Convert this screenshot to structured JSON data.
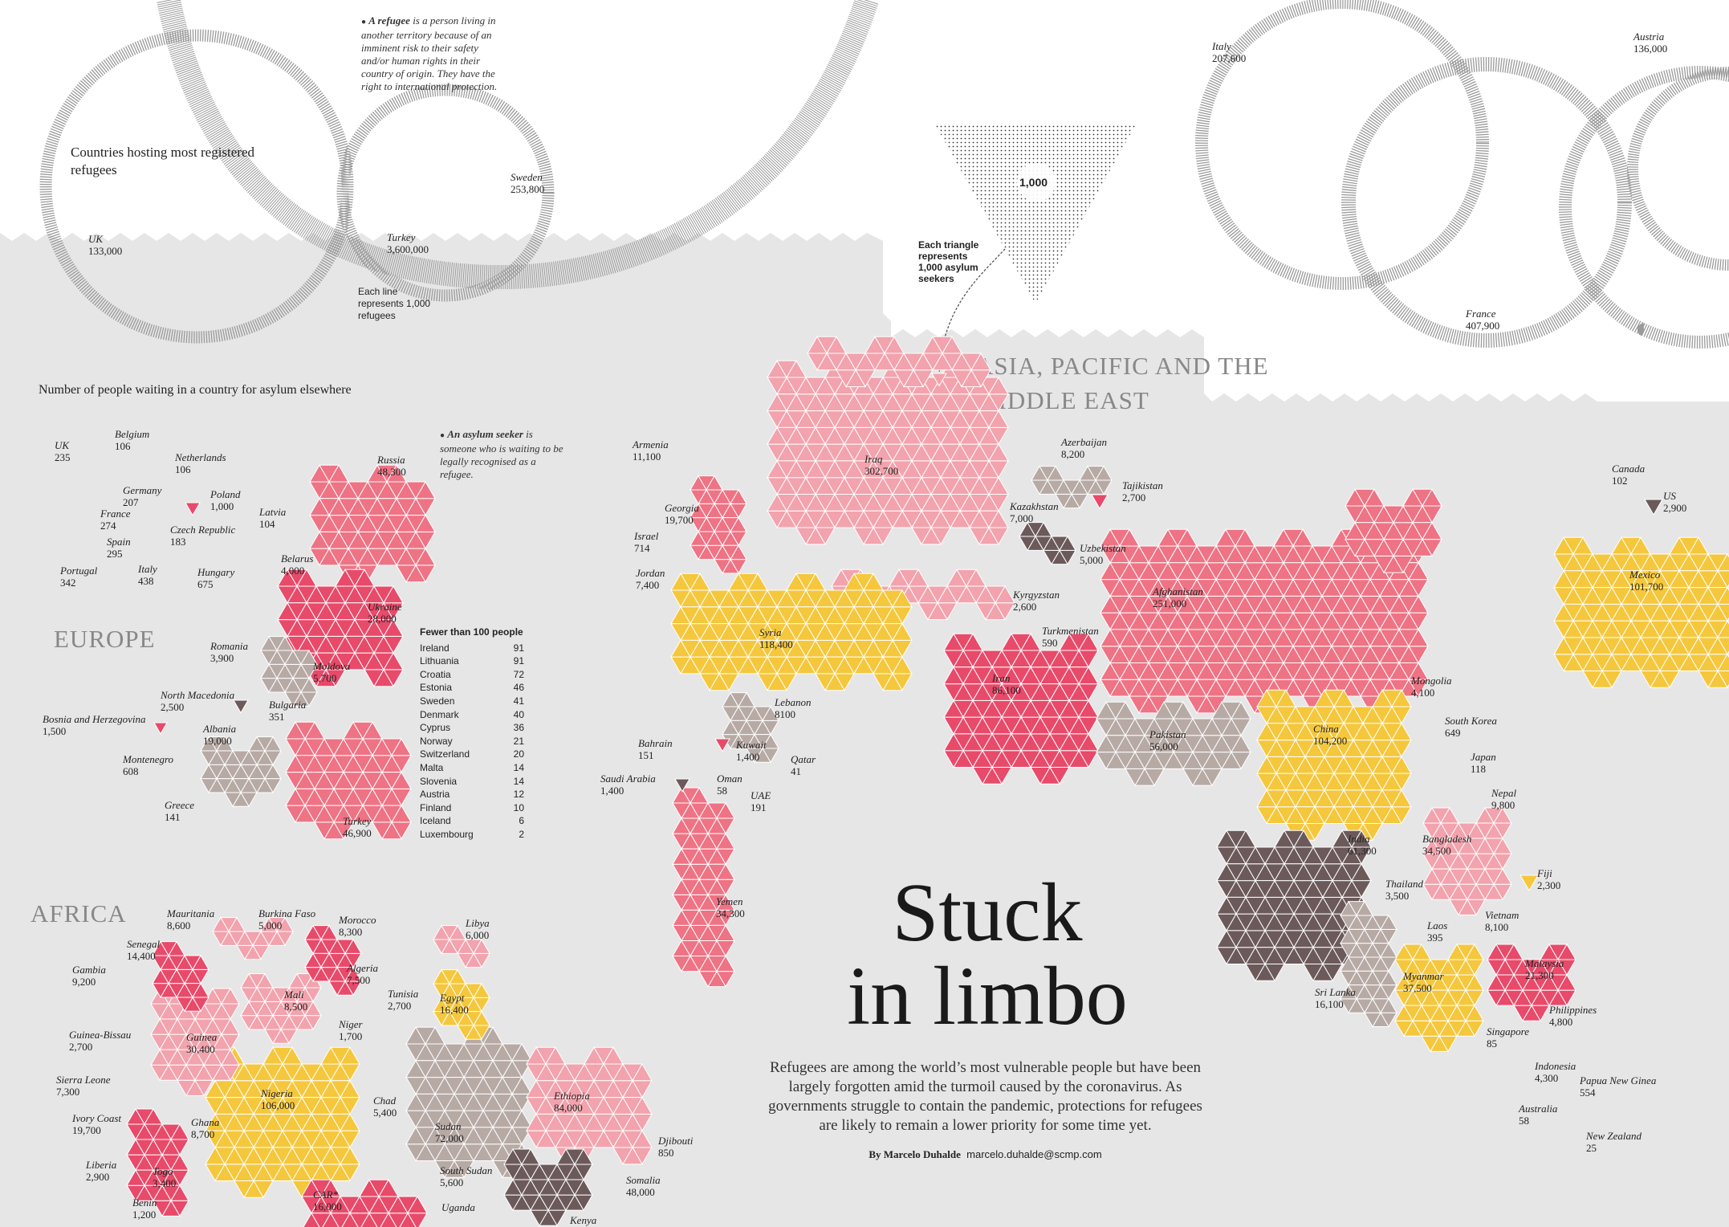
{
  "colors": {
    "background": "#e6e6e6",
    "white": "#ffffff",
    "pink_light": "#f2a3ad",
    "pink": "#ee7384",
    "red": "#e84a6a",
    "yellow": "#f5c73c",
    "taupe": "#b7aaa5",
    "dark": "#6c5a5b",
    "ring": "#9a9a9a"
  },
  "top": {
    "title": "Countries hosting most registered refugees",
    "refugee_note_term": "A refugee",
    "refugee_note_text": "is a person living in another territory because of an imminent risk to their safety and/or human rights in their country of origin. They have the right to international protection.",
    "line_caption": "Each line represents 1,000 refugees",
    "triangle_value": "1,000",
    "triangle_caption": "Each triangle represents 1,000 asylum seekers",
    "hosts": [
      {
        "name": "UK",
        "value": "133,000"
      },
      {
        "name": "Turkey",
        "value": "3,600,000"
      },
      {
        "name": "Sweden",
        "value": "253,800"
      },
      {
        "name": "Italy",
        "value": "207,600"
      },
      {
        "name": "Austria",
        "value": "136,000"
      },
      {
        "name": "France",
        "value": "407,900"
      }
    ]
  },
  "asylum": {
    "title": "Number of people waiting in a country for asylum elsewhere",
    "asylum_note_term": "An asylum seeker",
    "asylum_note_text": "is someone who is waiting to be legally recognised as a refugee.",
    "regions": {
      "europe": "EUROPE",
      "africa": "AFRICA",
      "asia": "ASIA, PACIFIC AND THE MIDDLE EAST"
    }
  },
  "fewer": {
    "title": "Fewer than 100 people",
    "rows": [
      {
        "c": "Ireland",
        "v": "91"
      },
      {
        "c": "Lithuania",
        "v": "91"
      },
      {
        "c": "Croatia",
        "v": "72"
      },
      {
        "c": "Estonia",
        "v": "46"
      },
      {
        "c": "Sweden",
        "v": "41"
      },
      {
        "c": "Denmark",
        "v": "40"
      },
      {
        "c": "Cyprus",
        "v": "36"
      },
      {
        "c": "Norway",
        "v": "21"
      },
      {
        "c": "Switzerland",
        "v": "20"
      },
      {
        "c": "Malta",
        "v": "14"
      },
      {
        "c": "Slovenia",
        "v": "14"
      },
      {
        "c": "Austria",
        "v": "12"
      },
      {
        "c": "Finland",
        "v": "10"
      },
      {
        "c": "Iceland",
        "v": "6"
      },
      {
        "c": "Luxembourg",
        "v": "2"
      }
    ]
  },
  "labels": [
    {
      "n": "UK",
      "v": "235"
    },
    {
      "n": "Belgium",
      "v": "106"
    },
    {
      "n": "Netherlands",
      "v": "106"
    },
    {
      "n": "Germany",
      "v": "207"
    },
    {
      "n": "Poland",
      "v": "1,000"
    },
    {
      "n": "France",
      "v": "274"
    },
    {
      "n": "Czech Republic",
      "v": "183"
    },
    {
      "n": "Spain",
      "v": "295"
    },
    {
      "n": "Portugal",
      "v": "342"
    },
    {
      "n": "Italy",
      "v": "438"
    },
    {
      "n": "Hungary",
      "v": "675"
    },
    {
      "n": "Latvia",
      "v": "104"
    },
    {
      "n": "Russia",
      "v": "48,300"
    },
    {
      "n": "Belarus",
      "v": "4,000"
    },
    {
      "n": "Ukraine",
      "v": "28,000"
    },
    {
      "n": "Romania",
      "v": "3,900"
    },
    {
      "n": "Moldova",
      "v": "5,700"
    },
    {
      "n": "North Macedonia",
      "v": "2,500"
    },
    {
      "n": "Bulgaria",
      "v": "351"
    },
    {
      "n": "Bosnia and Herzegovina",
      "v": "1,500"
    },
    {
      "n": "Albania",
      "v": "19,000"
    },
    {
      "n": "Montenegro",
      "v": "608"
    },
    {
      "n": "Greece",
      "v": "141"
    },
    {
      "n": "Turkey",
      "v": "46,900"
    },
    {
      "n": "Mauritania",
      "v": "8,600"
    },
    {
      "n": "Burkina Faso",
      "v": "5,000"
    },
    {
      "n": "Morocco",
      "v": "8,300"
    },
    {
      "n": "Libya",
      "v": "6,000"
    },
    {
      "n": "Senegal",
      "v": "14,400"
    },
    {
      "n": "Gambia",
      "v": "9,200"
    },
    {
      "n": "Algeria",
      "v": "7,500"
    },
    {
      "n": "Mali",
      "v": "8,500"
    },
    {
      "n": "Tunisia",
      "v": "2,700"
    },
    {
      "n": "Egypt",
      "v": "16,400"
    },
    {
      "n": "Guinea-Bissau",
      "v": "2,700"
    },
    {
      "n": "Guinea",
      "v": "30,400"
    },
    {
      "n": "Niger",
      "v": "1,700"
    },
    {
      "n": "Sierra Leone",
      "v": "7,300"
    },
    {
      "n": "Nigeria",
      "v": "106,000"
    },
    {
      "n": "Chad",
      "v": "5,400"
    },
    {
      "n": "Sudan",
      "v": "72,000"
    },
    {
      "n": "Ethiopia",
      "v": "84,000"
    },
    {
      "n": "Ivory Coast",
      "v": "19,700"
    },
    {
      "n": "Ghana",
      "v": "8,700"
    },
    {
      "n": "Djibouti",
      "v": "850"
    },
    {
      "n": "Liberia",
      "v": "2,900"
    },
    {
      "n": "Togo",
      "v": "3,400"
    },
    {
      "n": "South Sudan",
      "v": "5,600"
    },
    {
      "n": "Somalia",
      "v": "48,000"
    },
    {
      "n": "Benin",
      "v": "1,200"
    },
    {
      "n": "CAR*",
      "v": "16,000"
    },
    {
      "n": "Uganda",
      "v": ""
    },
    {
      "n": "Kenya",
      "v": ""
    },
    {
      "n": "Armenia",
      "v": "11,100"
    },
    {
      "n": "Iraq",
      "v": "302,700"
    },
    {
      "n": "Georgia",
      "v": "19,700"
    },
    {
      "n": "Israel",
      "v": "714"
    },
    {
      "n": "Jordan",
      "v": "7,400"
    },
    {
      "n": "Syria",
      "v": "118,400"
    },
    {
      "n": "Lebanon",
      "v": "8100"
    },
    {
      "n": "Bahrain",
      "v": "151"
    },
    {
      "n": "Kuwait",
      "v": "1,400"
    },
    {
      "n": "Qatar",
      "v": "41"
    },
    {
      "n": "Saudi Arabia",
      "v": "1,400"
    },
    {
      "n": "Oman",
      "v": "58"
    },
    {
      "n": "UAE",
      "v": "191"
    },
    {
      "n": "Yemen",
      "v": "34,300"
    },
    {
      "n": "Azerbaijan",
      "v": "8,200"
    },
    {
      "n": "Tajikistan",
      "v": "2,700"
    },
    {
      "n": "Kazakhstan",
      "v": "7,000"
    },
    {
      "n": "Uzbekistan",
      "v": "5,000"
    },
    {
      "n": "Kyrgyzstan",
      "v": "2,600"
    },
    {
      "n": "Afghanistan",
      "v": "251,000"
    },
    {
      "n": "Turkmenistan",
      "v": "590"
    },
    {
      "n": "Iran",
      "v": "86,100"
    },
    {
      "n": "Mongolia",
      "v": "4,100"
    },
    {
      "n": "South Korea",
      "v": "649"
    },
    {
      "n": "China",
      "v": "104,200"
    },
    {
      "n": "Pakistan",
      "v": "56,000"
    },
    {
      "n": "Japan",
      "v": "118"
    },
    {
      "n": "Nepal",
      "v": "9,800"
    },
    {
      "n": "India",
      "v": "61,300"
    },
    {
      "n": "Bangladesh",
      "v": "34,500"
    },
    {
      "n": "Thailand",
      "v": "3,500"
    },
    {
      "n": "Fiji",
      "v": "2,300"
    },
    {
      "n": "Vietnam",
      "v": "8,100"
    },
    {
      "n": "Laos",
      "v": "395"
    },
    {
      "n": "Myanmar",
      "v": "37,500"
    },
    {
      "n": "Malaysia",
      "v": "21,300"
    },
    {
      "n": "Sri Lanka",
      "v": "16,100"
    },
    {
      "n": "Philippines",
      "v": "4,800"
    },
    {
      "n": "Singapore",
      "v": "85"
    },
    {
      "n": "Indonesia",
      "v": "4,300"
    },
    {
      "n": "Papua New Ginea",
      "v": "554"
    },
    {
      "n": "Australia",
      "v": "58"
    },
    {
      "n": "New Zealand",
      "v": "25"
    },
    {
      "n": "Canada",
      "v": "102"
    },
    {
      "n": "US",
      "v": "2,900"
    },
    {
      "n": "Mexico",
      "v": "101,700"
    }
  ],
  "headline": {
    "line1": "Stuck",
    "line2": "in limbo"
  },
  "intro": "Refugees are among the world’s most vulnerable people but have been largely forgotten amid the turmoil caused by the coronavirus. As governments struggle to contain the pandemic, protections for refugees are likely to remain a lower priority for some time yet.",
  "byline": {
    "by": "By Marcelo Duhalde",
    "email": "marcelo.duhalde@scmp.com"
  }
}
